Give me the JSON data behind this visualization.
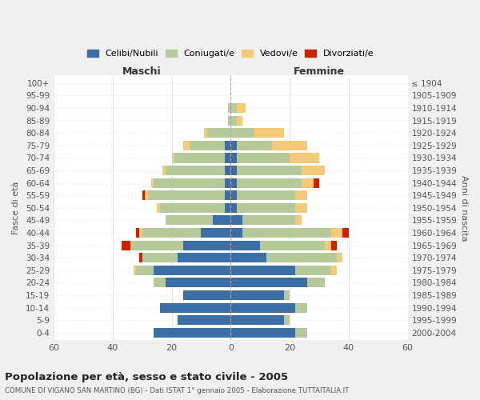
{
  "age_groups": [
    "0-4",
    "5-9",
    "10-14",
    "15-19",
    "20-24",
    "25-29",
    "30-34",
    "35-39",
    "40-44",
    "45-49",
    "50-54",
    "55-59",
    "60-64",
    "65-69",
    "70-74",
    "75-79",
    "80-84",
    "85-89",
    "90-94",
    "95-99",
    "100+"
  ],
  "birth_years": [
    "2000-2004",
    "1995-1999",
    "1990-1994",
    "1985-1989",
    "1980-1984",
    "1975-1979",
    "1970-1974",
    "1965-1969",
    "1960-1964",
    "1955-1959",
    "1950-1954",
    "1945-1949",
    "1940-1944",
    "1935-1939",
    "1930-1934",
    "1925-1929",
    "1920-1924",
    "1915-1919",
    "1910-1914",
    "1905-1909",
    "≤ 1904"
  ],
  "maschi": {
    "celibi": [
      26,
      18,
      24,
      16,
      22,
      26,
      18,
      16,
      10,
      6,
      2,
      2,
      2,
      2,
      2,
      2,
      0,
      0,
      0,
      0,
      0
    ],
    "coniugati": [
      0,
      0,
      0,
      0,
      4,
      6,
      12,
      18,
      20,
      16,
      22,
      26,
      24,
      20,
      17,
      12,
      8,
      1,
      1,
      0,
      0
    ],
    "vedovi": [
      0,
      0,
      0,
      0,
      0,
      1,
      0,
      0,
      1,
      0,
      1,
      1,
      1,
      1,
      1,
      2,
      1,
      0,
      0,
      0,
      0
    ],
    "divorziati": [
      0,
      0,
      0,
      0,
      0,
      0,
      1,
      3,
      1,
      0,
      0,
      1,
      0,
      0,
      0,
      0,
      0,
      0,
      0,
      0,
      0
    ]
  },
  "femmine": {
    "nubili": [
      22,
      18,
      22,
      18,
      26,
      22,
      12,
      10,
      4,
      4,
      2,
      2,
      2,
      2,
      2,
      2,
      0,
      0,
      0,
      0,
      0
    ],
    "coniugate": [
      4,
      2,
      4,
      2,
      6,
      12,
      24,
      22,
      30,
      18,
      20,
      20,
      22,
      22,
      18,
      12,
      8,
      2,
      2,
      0,
      0
    ],
    "vedove": [
      0,
      0,
      0,
      0,
      0,
      2,
      2,
      2,
      4,
      2,
      4,
      4,
      4,
      8,
      10,
      12,
      10,
      2,
      3,
      0,
      0
    ],
    "divorziate": [
      0,
      0,
      0,
      0,
      0,
      0,
      0,
      2,
      2,
      0,
      0,
      0,
      2,
      0,
      0,
      0,
      0,
      0,
      0,
      0,
      0
    ]
  },
  "colors": {
    "celibi": "#3a6ea5",
    "coniugati": "#b5c99a",
    "vedovi": "#f5c97a",
    "divorziati": "#cc2200"
  },
  "xlim": 60,
  "title": "Popolazione per età, sesso e stato civile - 2005",
  "subtitle": "COMUNE DI VIGANO SAN MARTINO (BG) - Dati ISTAT 1° gennaio 2005 - Elaborazione TUTTAITALIA.IT",
  "ylabel_left": "Fasce di età",
  "ylabel_right": "Anni di nascita",
  "xlabel_maschi": "Maschi",
  "xlabel_femmine": "Femmine",
  "bg_color": "#f0f0f0",
  "plot_bg_color": "#ffffff",
  "legend_labels": [
    "Celibi/Nubili",
    "Coniugati/e",
    "Vedovi/e",
    "Divorziati/e"
  ]
}
